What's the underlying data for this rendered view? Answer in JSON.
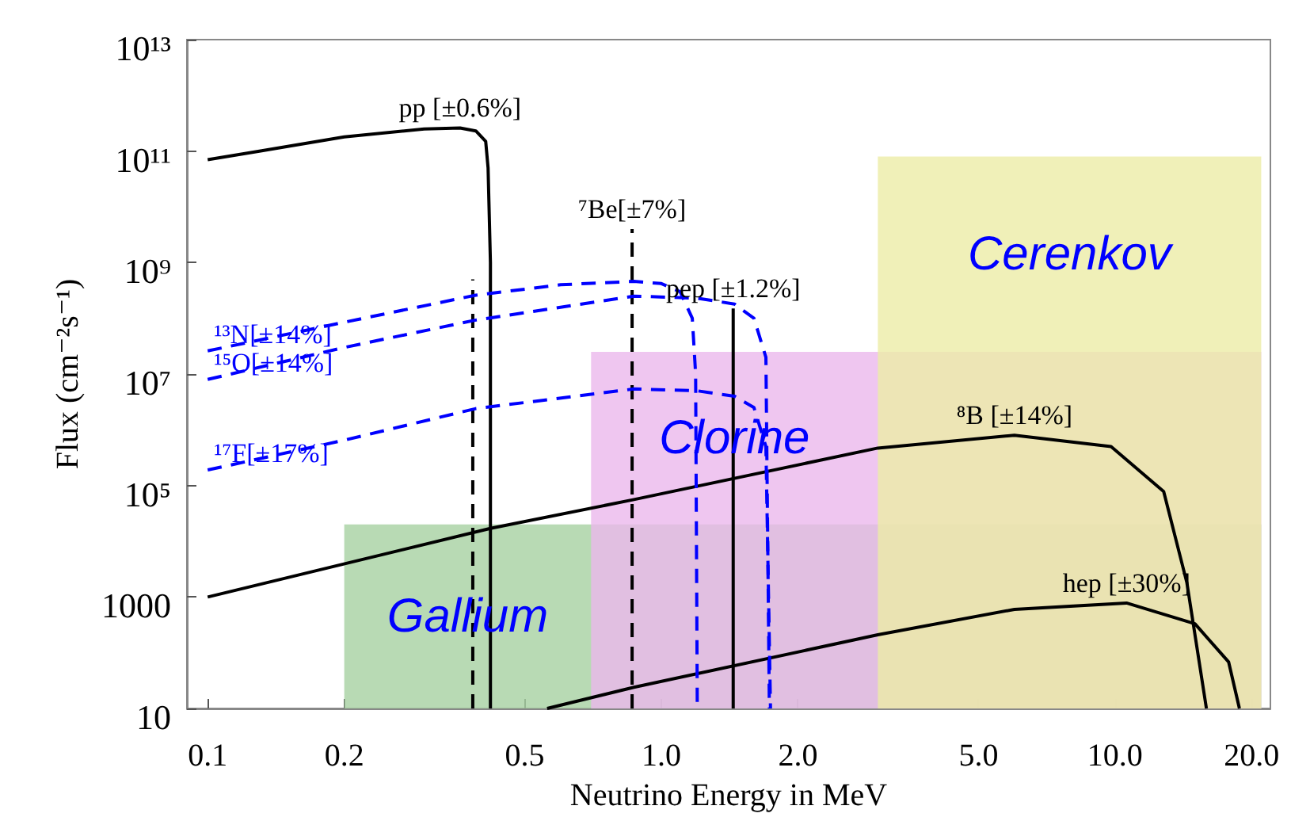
{
  "chart_data": {
    "type": "line",
    "xlabel": "Neutrino Energy in MeV",
    "ylabel": "Flux (cm⁻²s⁻¹)",
    "log": "xy",
    "grid": false,
    "legend": false,
    "marker": "none",
    "xlim": [
      0.09,
      22
    ],
    "ylim": [
      10,
      10000000000000
    ],
    "xticks": [
      0.1,
      0.2,
      0.5,
      {
        "value": 1,
        "label": "1.0"
      },
      {
        "value": 2,
        "label": "2.0"
      },
      {
        "value": 5,
        "label": "5.0"
      },
      {
        "value": 10,
        "label": "10.0"
      },
      {
        "value": 20,
        "label": "20.0"
      }
    ],
    "yticks": [
      10,
      1000,
      {
        "value": 100000,
        "label": "10⁵"
      },
      {
        "value": 10000000,
        "label": "10⁷"
      },
      {
        "value": 1000000000,
        "label": "10⁹"
      },
      {
        "value": 100000000000,
        "label": "10¹¹"
      },
      {
        "value": 10000000000000,
        "label": "10¹³"
      }
    ],
    "series": [
      {
        "type": "area",
        "name": "Gallium",
        "color": "#a6d1a1",
        "x": [
          0.2,
          21
        ],
        "values": [
          20000,
          20000
        ]
      },
      {
        "type": "area",
        "name": "Clorine",
        "color": "#ebb8ec",
        "x": [
          0.7,
          21
        ],
        "values": [
          25000000,
          25000000
        ]
      },
      {
        "type": "area",
        "name": "Cerenkov",
        "color": "#ececa6",
        "x": [
          3,
          21
        ],
        "values": [
          80000000000,
          80000000000
        ]
      },
      {
        "name": "pp [±0.6%]",
        "color": "#000000",
        "line_style": "solid",
        "x": [
          0.1,
          0.13,
          0.2,
          0.3,
          0.36,
          0.39,
          0.41,
          0.415,
          0.42,
          0.42
        ],
        "values": [
          70000000000,
          100000000000,
          180000000000,
          250000000000,
          260000000000,
          230000000000,
          150000000000,
          50000000000,
          1000000000,
          10
        ]
      },
      {
        "name": "⁷Be[±7%]",
        "color": "#000000",
        "line_style": "dashed",
        "x": [
          0.384,
          0.384,
          0.6,
          0.862,
          0.862
        ],
        "values": [
          10,
          500000000,
          null,
          10,
          4000000000
        ]
      },
      {
        "name": "pep [±1.2%]",
        "color": "#000000",
        "line_style": "solid",
        "x": [
          1.44,
          1.44
        ],
        "values": [
          10,
          150000000
        ]
      },
      {
        "name": "⁸B [±14%]",
        "color": "#000000",
        "line_style": "solid",
        "x": [
          0.1,
          0.42,
          0.87,
          3,
          6,
          9.8,
          12.8,
          14.4,
          15.9
        ],
        "values": [
          1000,
          17000,
          56000,
          470000,
          800000,
          500000,
          78000,
          1800,
          10
        ]
      },
      {
        "name": "hep [±30%]",
        "color": "#000000",
        "line_style": "solid",
        "x": [
          0.56,
          0.87,
          3,
          6,
          10.6,
          15,
          17.8,
          18.8
        ],
        "values": [
          10,
          24,
          210,
          600,
          780,
          330,
          68,
          10
        ]
      },
      {
        "name": "¹³N[±14%]",
        "color": "#0000ff",
        "line_style": "dashed",
        "x": [
          0.1,
          0.2,
          0.39,
          0.6,
          0.87,
          1,
          1.1,
          1.17,
          1.19,
          1.2
        ],
        "values": [
          26000000,
          85000000,
          260000000,
          400000000,
          460000000,
          420000000,
          300000000,
          100000000,
          10000000,
          10
        ]
      },
      {
        "name": "¹⁵O[±14%]",
        "color": "#0000ff",
        "line_style": "dashed",
        "x": [
          0.1,
          0.2,
          0.39,
          0.87,
          1.2,
          1.45,
          1.6,
          1.7,
          1.73
        ],
        "values": [
          8000000,
          30000000,
          93000000,
          250000000,
          230000000,
          180000000,
          100000000,
          20000000,
          10
        ]
      },
      {
        "name": "¹⁷F[±17%]",
        "color": "#0000ff",
        "line_style": "dashed",
        "x": [
          0.1,
          0.2,
          0.39,
          0.87,
          1.2,
          1.45,
          1.6,
          1.7,
          1.74
        ],
        "values": [
          190000,
          650000,
          2400000,
          5400000,
          5000000,
          4000000,
          2500000,
          500000,
          10
        ]
      }
    ]
  }
}
